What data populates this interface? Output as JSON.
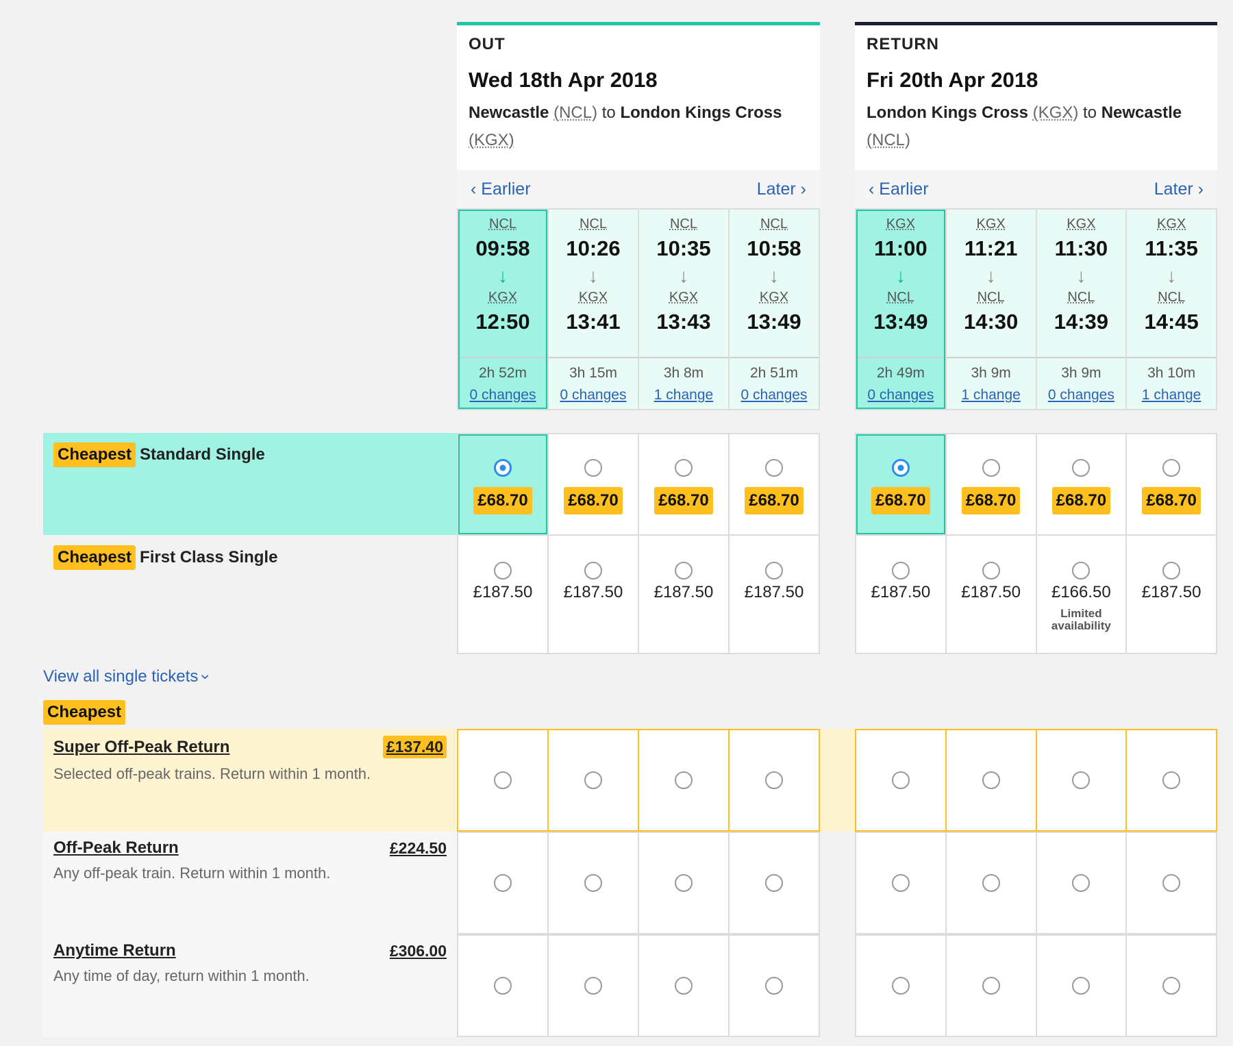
{
  "out": {
    "direction": "OUT",
    "date": "Wed 18th Apr 2018",
    "from_name": "Newcastle",
    "from_code": "(NCL)",
    "connector": "to",
    "to_name": "London Kings Cross",
    "to_code": "(KGX)",
    "earlier": "Earlier",
    "later": "Later",
    "trains": [
      {
        "dep_st": "NCL",
        "dep": "09:58",
        "arr_st": "KGX",
        "arr": "12:50",
        "dur": "2h 52m",
        "changes": "0 changes"
      },
      {
        "dep_st": "NCL",
        "dep": "10:26",
        "arr_st": "KGX",
        "arr": "13:41",
        "dur": "3h 15m",
        "changes": "0 changes"
      },
      {
        "dep_st": "NCL",
        "dep": "10:35",
        "arr_st": "KGX",
        "arr": "13:43",
        "dur": "3h 8m",
        "changes": "1 change"
      },
      {
        "dep_st": "NCL",
        "dep": "10:58",
        "arr_st": "KGX",
        "arr": "13:49",
        "dur": "2h 51m",
        "changes": "0 changes"
      }
    ],
    "standard": [
      "£68.70",
      "£68.70",
      "£68.70",
      "£68.70"
    ],
    "first": [
      "£187.50",
      "£187.50",
      "£187.50",
      "£187.50"
    ]
  },
  "ret": {
    "direction": "RETURN",
    "date": "Fri 20th Apr 2018",
    "from_name": "London Kings Cross",
    "from_code": "(KGX)",
    "connector": "to",
    "to_name": "Newcastle",
    "to_code": "(NCL)",
    "earlier": "Earlier",
    "later": "Later",
    "trains": [
      {
        "dep_st": "KGX",
        "dep": "11:00",
        "arr_st": "NCL",
        "arr": "13:49",
        "dur": "2h 49m",
        "changes": "0 changes"
      },
      {
        "dep_st": "KGX",
        "dep": "11:21",
        "arr_st": "NCL",
        "arr": "14:30",
        "dur": "3h 9m",
        "changes": "1 change"
      },
      {
        "dep_st": "KGX",
        "dep": "11:30",
        "arr_st": "NCL",
        "arr": "14:39",
        "dur": "3h 9m",
        "changes": "0 changes"
      },
      {
        "dep_st": "KGX",
        "dep": "11:35",
        "arr_st": "NCL",
        "arr": "14:45",
        "dur": "3h 10m",
        "changes": "1 change"
      }
    ],
    "standard": [
      "£68.70",
      "£68.70",
      "£68.70",
      "£68.70"
    ],
    "first": [
      "£187.50",
      "£187.50",
      "£166.50",
      "£187.50"
    ],
    "limited": "Limited availability"
  },
  "singles": {
    "standard_badge": "Cheapest",
    "standard_name": "Standard Single",
    "first_badge": "Cheapest",
    "first_name": "First Class Single",
    "view_all": "View all single tickets"
  },
  "returns": {
    "badge": "Cheapest",
    "rows": [
      {
        "name": "Super Off-Peak Return",
        "price": "£137.40",
        "desc": "Selected off-peak trains. Return within 1 month."
      },
      {
        "name": "Off-Peak Return",
        "price": "£224.50",
        "desc": "Any off-peak train. Return within 1 month."
      },
      {
        "name": "Anytime Return",
        "price": "£306.00",
        "desc": "Any time of day, return within 1 month."
      }
    ]
  },
  "colors": {
    "accent_teal": "#1fc6a4",
    "selected_bg": "#a0f2e2",
    "cheapest_yellow": "#ffbf1f",
    "link_blue": "#2a62b5",
    "radio_blue": "#2b8cf0"
  }
}
